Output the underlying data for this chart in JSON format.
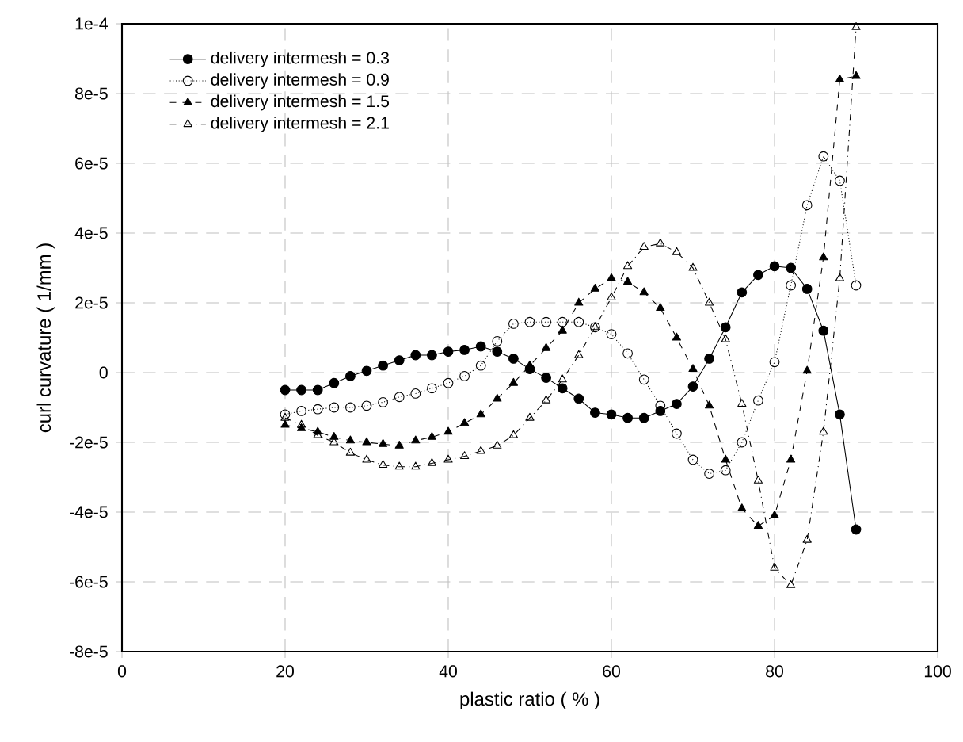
{
  "chart_data": {
    "type": "line",
    "xlabel": "plastic ratio ( % )",
    "ylabel": "curl curvature ( 1/mm )",
    "xlim": [
      0,
      100
    ],
    "xticks": [
      0,
      20,
      40,
      60,
      80,
      100
    ],
    "ylim": [
      -8e-05,
      0.0001
    ],
    "yticks": [
      {
        "value": -8e-05,
        "label": "-8e-5"
      },
      {
        "value": -6e-05,
        "label": "-6e-5"
      },
      {
        "value": -4e-05,
        "label": "-4e-5"
      },
      {
        "value": -2e-05,
        "label": "-2e-5"
      },
      0,
      {
        "value": 2e-05,
        "label": "2e-5"
      },
      {
        "value": 4e-05,
        "label": "4e-5"
      },
      {
        "value": 6e-05,
        "label": "6e-5"
      },
      {
        "value": 8e-05,
        "label": "8e-5"
      },
      {
        "value": 0.0001,
        "label": "1e-4"
      }
    ],
    "grid": true,
    "legend": "top left",
    "x": [
      20,
      22,
      24,
      26,
      28,
      30,
      32,
      34,
      36,
      38,
      40,
      42,
      44,
      46,
      48,
      50,
      52,
      54,
      56,
      58,
      60,
      62,
      64,
      66,
      68,
      70,
      72,
      74,
      76,
      78,
      80,
      82,
      84,
      86,
      88,
      90
    ],
    "series": [
      {
        "name": "delivery intermesh = 0.3",
        "color": "#000000",
        "marker": "circle",
        "line_style": "solid",
        "values": [
          -5e-06,
          -5e-06,
          -5e-06,
          -3e-06,
          -1e-06,
          5e-07,
          2e-06,
          3.5e-06,
          5e-06,
          5e-06,
          6e-06,
          6.5e-06,
          7.5e-06,
          6e-06,
          4e-06,
          1e-06,
          -1.5e-06,
          -4.5e-06,
          -7.5e-06,
          -1.15e-05,
          -1.2e-05,
          -1.3e-05,
          -1.3e-05,
          -1.1e-05,
          -9e-06,
          -4e-06,
          4e-06,
          1.3e-05,
          2.3e-05,
          2.8e-05,
          3.05e-05,
          3e-05,
          2.4e-05,
          1.2e-05,
          -1.2e-05,
          -4.5e-05
        ]
      },
      {
        "name": "delivery intermesh = 0.9",
        "color": "#000000",
        "marker": "circle",
        "line_style": "dotted",
        "values": [
          -1.2e-05,
          -1.1e-05,
          -1.05e-05,
          -1e-05,
          -1e-05,
          -9.5e-06,
          -8.5e-06,
          -7e-06,
          -6e-06,
          -4.5e-06,
          -3e-06,
          -1e-06,
          2e-06,
          9e-06,
          1.4e-05,
          1.45e-05,
          1.45e-05,
          1.45e-05,
          1.45e-05,
          1.3e-05,
          1.1e-05,
          5.5e-06,
          -2e-06,
          -9.5e-06,
          -1.75e-05,
          -2.5e-05,
          -2.9e-05,
          -2.8e-05,
          -2e-05,
          -8e-06,
          3e-06,
          2.5e-05,
          4.8e-05,
          6.2e-05,
          5.5e-05,
          2.5e-05
        ]
      },
      {
        "name": "delivery intermesh = 1.5",
        "color": "#000000",
        "marker": "triangle",
        "line_style": "dashed",
        "values": [
          -1.5e-05,
          -1.6e-05,
          -1.7e-05,
          -1.85e-05,
          -1.95e-05,
          -2e-05,
          -2.05e-05,
          -2.1e-05,
          -1.95e-05,
          -1.85e-05,
          -1.7e-05,
          -1.45e-05,
          -1.2e-05,
          -7.5e-06,
          -3e-06,
          2e-06,
          7e-06,
          1.2e-05,
          2e-05,
          2.4e-05,
          2.7e-05,
          2.6e-05,
          2.3e-05,
          1.85e-05,
          1e-05,
          1e-06,
          -9.5e-06,
          -2.5e-05,
          -3.9e-05,
          -4.4e-05,
          -4.1e-05,
          -2.5e-05,
          5e-07,
          3.3e-05,
          8.4e-05,
          8.5e-05
        ]
      },
      {
        "name": "delivery intermesh = 2.1",
        "color": "#000000",
        "marker": "triangle",
        "line_style": "dashdot",
        "values": [
          -1.3e-05,
          -1.5e-05,
          -1.8e-05,
          -2e-05,
          -2.3e-05,
          -2.5e-05,
          -2.65e-05,
          -2.7e-05,
          -2.7e-05,
          -2.6e-05,
          -2.5e-05,
          -2.4e-05,
          -2.25e-05,
          -2.1e-05,
          -1.8e-05,
          -1.3e-05,
          -8e-06,
          -2e-06,
          5e-06,
          1.3e-05,
          2.15e-05,
          3.05e-05,
          3.6e-05,
          3.7e-05,
          3.45e-05,
          3e-05,
          2e-05,
          9.5e-06,
          -9e-06,
          -3.1e-05,
          -5.6e-05,
          -6.1e-05,
          -4.8e-05,
          -1.7e-05,
          2.7e-05,
          9.9e-05
        ]
      }
    ]
  }
}
